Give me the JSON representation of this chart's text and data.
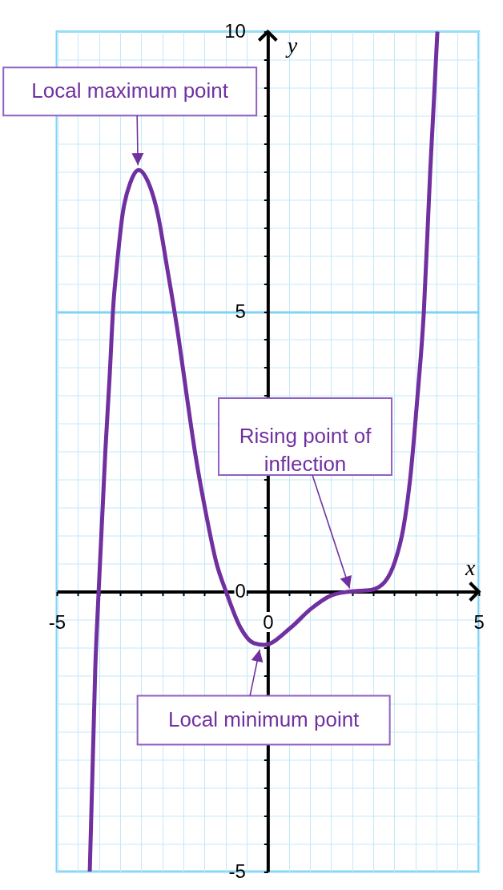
{
  "chart_data": {
    "type": "line",
    "xlabel": "x",
    "ylabel": "y",
    "x": [
      -4.22,
      -4.09,
      -4.01,
      -3.85,
      -3.75,
      -3.66,
      -3.58,
      -3.44,
      -3.25,
      -3.06,
      -2.84,
      -2.61,
      -2.39,
      -2.12,
      -1.92,
      -1.73,
      -1.49,
      -1.21,
      -0.99,
      -0.65,
      -0.33,
      -0.08,
      0.55,
      1.02,
      1.5,
      1.94,
      2.45,
      2.77,
      3.02,
      3.21,
      3.37,
      3.54,
      3.7,
      3.85,
      3.93,
      4.02
    ],
    "series": [
      {
        "color": "#7030a0",
        "values": [
          -5,
          -1.37,
          0,
          2.52,
          3.83,
          5.13,
          5.8,
          6.75,
          7.32,
          7.53,
          7.32,
          6.75,
          5.8,
          4.56,
          3.49,
          2.51,
          1.49,
          0.49,
          0,
          -0.64,
          -0.92,
          -0.95,
          -0.64,
          -0.31,
          -0.07,
          0,
          0.03,
          0.17,
          0.55,
          1.12,
          1.98,
          3.41,
          5.01,
          7.51,
          8.66,
          10
        ]
      }
    ],
    "xlim": [
      -5,
      5
    ],
    "ylim": [
      -5,
      10
    ],
    "xticks": [
      -5,
      {
        "value": -4.5,
        "label": null
      },
      {
        "value": -4,
        "label": null
      },
      {
        "value": -3.5,
        "label": null
      },
      {
        "value": -3,
        "label": null
      },
      {
        "value": -2.5,
        "label": null
      },
      {
        "value": -2,
        "label": null
      },
      {
        "value": -1.5,
        "label": null
      },
      {
        "value": -1,
        "label": null
      },
      {
        "value": -0.5,
        "label": null
      },
      0,
      {
        "value": 0.5,
        "label": null
      },
      {
        "value": 1,
        "label": null
      },
      {
        "value": 1.5,
        "label": null
      },
      {
        "value": 2,
        "label": null
      },
      {
        "value": 2.5,
        "label": null
      },
      {
        "value": 3,
        "label": null
      },
      {
        "value": 3.5,
        "label": null
      },
      {
        "value": 4,
        "label": null
      },
      {
        "value": 4.5,
        "label": null
      },
      5
    ],
    "yticks": [
      -5,
      {
        "value": -4.5,
        "label": null
      },
      {
        "value": -4,
        "label": null
      },
      {
        "value": -3.5,
        "label": null
      },
      {
        "value": -3,
        "label": null
      },
      {
        "value": -2.5,
        "label": null
      },
      {
        "value": -2,
        "label": null
      },
      {
        "value": -1.5,
        "label": null
      },
      {
        "value": -1,
        "label": null
      },
      {
        "value": -0.5,
        "label": null
      },
      0,
      {
        "value": 0.5,
        "label": null
      },
      {
        "value": 1,
        "label": null
      },
      {
        "value": 1.5,
        "label": null
      },
      {
        "value": 2,
        "label": null
      },
      {
        "value": 2.5,
        "label": null
      },
      {
        "value": 3,
        "label": null
      },
      {
        "value": 3.5,
        "label": null
      },
      {
        "value": 4,
        "label": null
      },
      {
        "value": 4.5,
        "label": null
      },
      5,
      {
        "value": 5.5,
        "label": null
      },
      {
        "value": 6,
        "label": null
      },
      {
        "value": 6.5,
        "label": null
      },
      {
        "value": 7,
        "label": null
      },
      {
        "value": 7.5,
        "label": null
      },
      {
        "value": 8,
        "label": null
      },
      {
        "value": 8.5,
        "label": null
      },
      {
        "value": 9,
        "label": null
      },
      {
        "value": 9.5,
        "label": null
      },
      10
    ],
    "grid": true,
    "ref_lines": [
      {
        "axis": "y",
        "value": 5,
        "color": "#80d3f6"
      }
    ],
    "annotations": [
      {
        "text": "Local maximum point",
        "x": -3.06,
        "y": 7.53
      },
      {
        "text": "Rising point of inflection",
        "x": 1.94,
        "y": 0
      },
      {
        "text": "Local minimum point",
        "x": -0.08,
        "y": -0.95
      }
    ]
  }
}
